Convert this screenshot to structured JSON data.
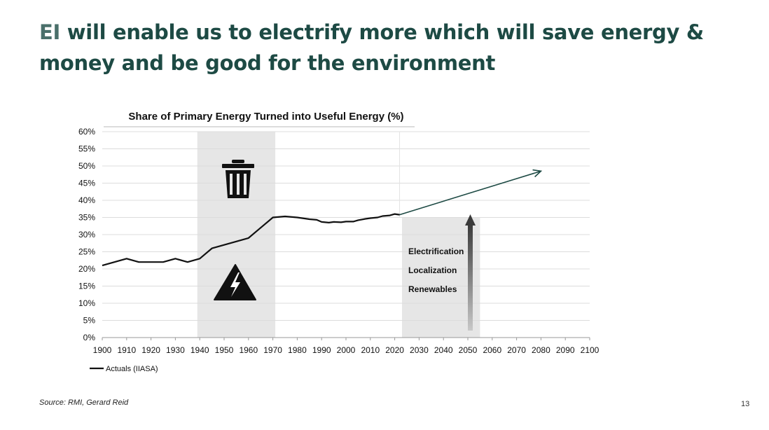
{
  "slide": {
    "title_prefix": "EI",
    "title_rest": " will enable us to electrify more which will save energy & money and be good for the environment",
    "source": "Source: RMI, Gerard Reid",
    "page_number": "13"
  },
  "icons": {
    "trash": "trash-can-icon",
    "warning": "high-voltage-warning-icon"
  },
  "colors": {
    "title": "#1d4a44",
    "title_prefix": "#4a6f6a",
    "actuals_line": "#111111",
    "projection_arrow": "#1d4a44",
    "shade": "#e6e6e6"
  },
  "chart_data": {
    "type": "line",
    "title": "Share of Primary Energy Turned into Useful Energy (%)",
    "xlabel": "",
    "ylabel": "",
    "xlim": [
      1900,
      2100
    ],
    "ylim": [
      0,
      60
    ],
    "x_ticks": [
      1900,
      1910,
      1920,
      1930,
      1940,
      1950,
      1960,
      1970,
      1980,
      1990,
      2000,
      2010,
      2020,
      2030,
      2040,
      2050,
      2060,
      2070,
      2080,
      2090,
      2100
    ],
    "y_ticks": [
      0,
      5,
      10,
      15,
      20,
      25,
      30,
      35,
      40,
      45,
      50,
      55,
      60
    ],
    "y_tick_labels": [
      "0%",
      "5%",
      "10%",
      "15%",
      "20%",
      "25%",
      "30%",
      "35%",
      "40%",
      "45%",
      "50%",
      "55%",
      "60%"
    ],
    "grid": true,
    "legend_position": "bottom-left",
    "series": [
      {
        "name": "Actuals (IIASA)",
        "x": [
          1900,
          1905,
          1910,
          1915,
          1920,
          1925,
          1930,
          1935,
          1940,
          1945,
          1950,
          1955,
          1960,
          1965,
          1970,
          1975,
          1980,
          1985,
          1988,
          1990,
          1993,
          1995,
          1998,
          2000,
          2003,
          2005,
          2008,
          2010,
          2013,
          2015,
          2018,
          2020,
          2022
        ],
        "values": [
          21,
          22,
          23,
          22,
          22,
          22,
          23,
          22,
          23,
          26,
          27,
          28,
          29,
          32,
          35,
          35.3,
          35,
          34.5,
          34.3,
          33.7,
          33.5,
          33.7,
          33.6,
          33.8,
          33.8,
          34.2,
          34.6,
          34.8,
          35,
          35.4,
          35.6,
          36,
          35.8
        ]
      }
    ],
    "projection": {
      "from": [
        2022,
        35.8
      ],
      "to": [
        2080,
        48.5
      ]
    },
    "shaded_bands": [
      {
        "x_start": 1939,
        "x_end": 1971,
        "y_top": 60
      },
      {
        "x_start": 2023,
        "x_end": 2055,
        "y_top": 35
      }
    ],
    "annotations": [
      "Electrification",
      "Localization",
      "Renewables"
    ]
  }
}
